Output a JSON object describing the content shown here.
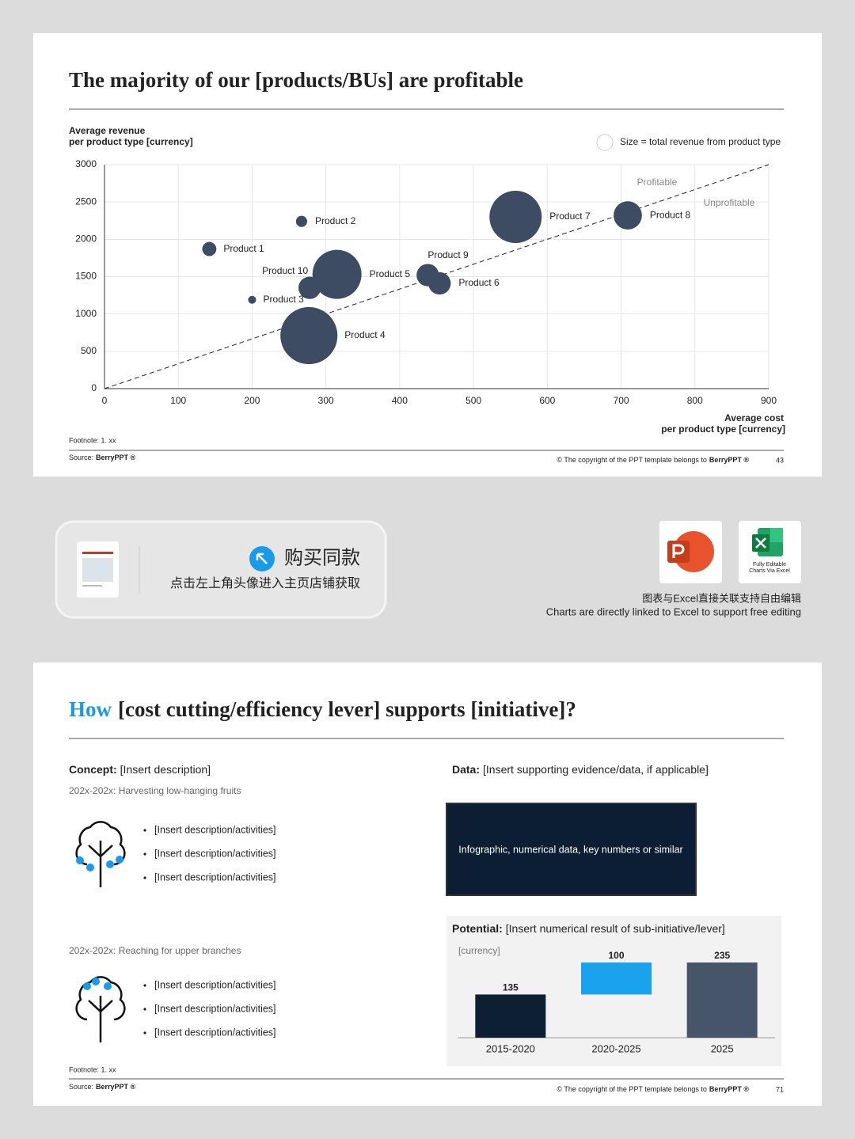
{
  "slide1": {
    "title": "The majority of our [products/BUs] are profitable",
    "footnote": "Footnote: 1. xx",
    "source_label": "Source:",
    "source": "BerryPPT ®",
    "copyright": "© The copyright of the PPT template belongs to",
    "copyright_brand": "BerryPPT ®",
    "page": 43
  },
  "chart_data": [
    {
      "type": "bubble",
      "y_label": [
        "Average revenue",
        "per product type [currency]"
      ],
      "x_label": [
        "Average cost",
        "per product type [currency]"
      ],
      "size_legend": "Size = total revenue from product type",
      "annotations": [
        "Profitable",
        "Unprofitable"
      ],
      "labels": [
        "Product 1",
        "Product 2",
        "Product 3",
        "Product 4",
        "Product 5",
        "Product 6",
        "Product 7",
        "Product 8",
        "Product 9",
        "Product 10"
      ],
      "x": [
        142,
        267,
        200,
        277,
        315,
        454,
        557,
        709,
        438,
        278
      ],
      "values": [
        1870,
        2240,
        1190,
        710,
        1530,
        1410,
        2300,
        2320,
        1520,
        1350
      ],
      "sizes": [
        80,
        50,
        25,
        1300,
        960,
        200,
        1090,
        320,
        200,
        200
      ],
      "color": "#3d4b63",
      "reference_line": {
        "x": [
          0,
          900
        ],
        "y": [
          0,
          3000
        ]
      },
      "xlim": [
        0,
        900
      ],
      "xticks": [
        0,
        100,
        200,
        300,
        400,
        500,
        600,
        700,
        800,
        900
      ],
      "ylim": [
        0,
        3000
      ],
      "yticks": [
        0,
        500,
        1000,
        1500,
        2000,
        2500,
        3000
      ],
      "grid": true
    },
    {
      "type": "waterfall",
      "title": "Potential:",
      "subtitle": "[Insert numerical result of sub-initiative/lever]",
      "unit_label": "[currency]",
      "categories": [
        "2015-2020",
        "2020-2025",
        "2025"
      ],
      "values": [
        135,
        100,
        235
      ],
      "measure": [
        "absolute",
        "relative",
        "total"
      ],
      "colors": [
        "#0d1f33",
        "#1aa3ec",
        "#465569"
      ]
    }
  ],
  "banner": {
    "buy": "购买同款",
    "hint": "点击左上角头像进入主页店铺获取",
    "excel_caption": [
      "Fully Editable",
      "Charts Via Excel"
    ],
    "note_cn": "图表与Excel直接关联支持自由编辑",
    "note_en": "Charts are directly linked to Excel to support free editing"
  },
  "slide2": {
    "title_highlight": "How",
    "title": "[cost cutting/efficiency lever] supports [initiative]?",
    "concept_label": "Concept:",
    "concept": "[Insert description]",
    "groups": [
      {
        "period": "202x-202x: Harvesting low-hanging fruits",
        "items": [
          "[Insert description/activities]",
          "[Insert description/activities]",
          "[Insert description/activities]"
        ]
      },
      {
        "period": "202x-202x: Reaching for upper branches",
        "items": [
          "[Insert description/activities]",
          "[Insert description/activities]",
          "[Insert description/activities]"
        ]
      }
    ],
    "data_label": "Data:",
    "data": "[Insert supporting evidence/data, if applicable]",
    "box": "Infographic, numerical data, key numbers or similar",
    "footnote": "Footnote: 1. xx",
    "source_label": "Source:",
    "source": "BerryPPT ®",
    "copyright": "© The copyright of the PPT template belongs to",
    "copyright_brand": "BerryPPT ®",
    "page": 71
  }
}
